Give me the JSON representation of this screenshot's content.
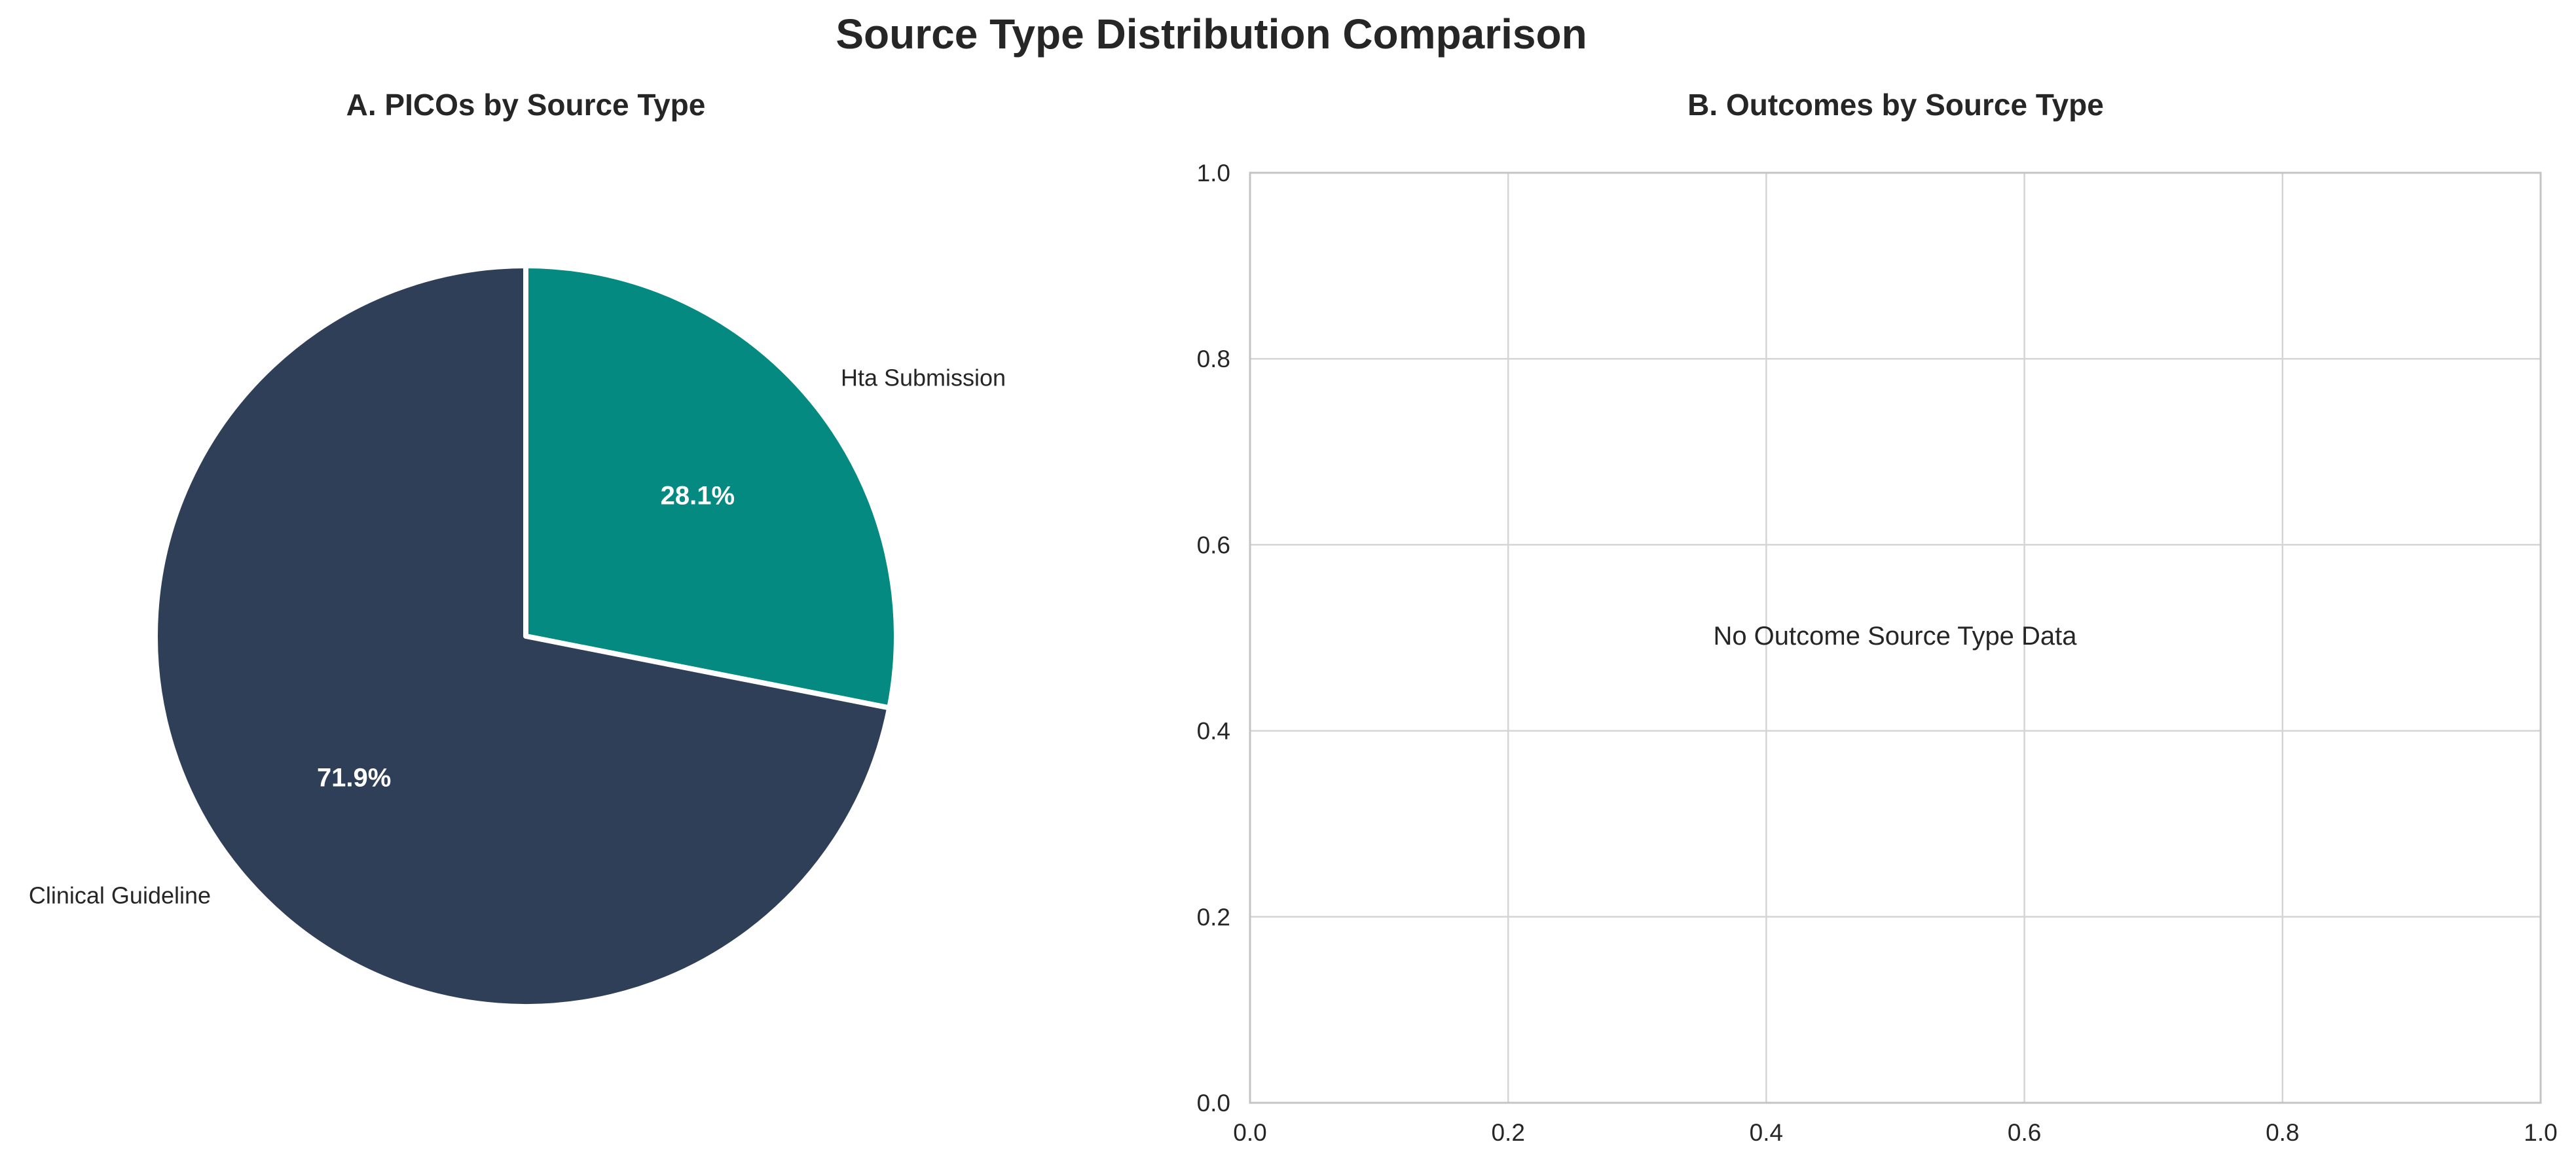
{
  "figure": {
    "title": "Source Type Distribution Comparison"
  },
  "chart_data": [
    {
      "type": "pie",
      "title": "A. PICOs by Source Type",
      "slices": [
        {
          "label": "Hta Submission",
          "value": 28.1,
          "pct_label": "28.1%",
          "color": "#048a81"
        },
        {
          "label": "Clinical Guideline",
          "value": 71.9,
          "pct_label": "71.9%",
          "color": "#2e3f57"
        }
      ],
      "start_angle_deg": 90,
      "direction": "clockwise"
    },
    {
      "type": "scatter",
      "title": "B. Outcomes by Source Type",
      "series": [],
      "message": "No Outcome Source Type Data",
      "xlim": [
        0,
        1
      ],
      "ylim": [
        0,
        1
      ],
      "x_ticks": [
        "0.0",
        "0.2",
        "0.4",
        "0.6",
        "0.8",
        "1.0"
      ],
      "y_ticks": [
        "0.0",
        "0.2",
        "0.4",
        "0.6",
        "0.8",
        "1.0"
      ],
      "grid": true
    }
  ],
  "colors": {
    "text": "#262626",
    "grid": "#d5d5d5",
    "spine": "#c4c4c4",
    "slice_edge": "#ffffff",
    "pct_text": "#ffffff"
  }
}
